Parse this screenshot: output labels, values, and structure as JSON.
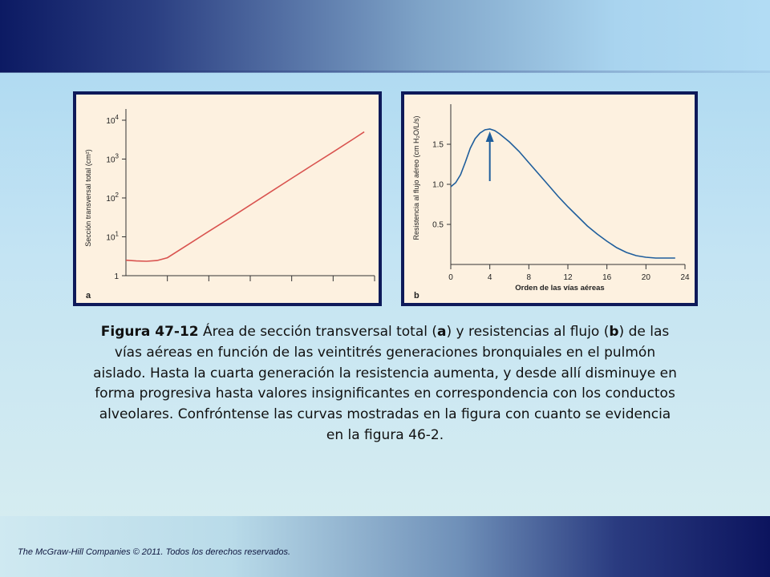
{
  "chart_data": [
    {
      "type": "line",
      "panel_label": "a",
      "ylabel": "Sección transversal total (cm²)",
      "y_scale": "log",
      "y_ticks": [
        {
          "value": 1,
          "base": "1",
          "exp": ""
        },
        {
          "value": 10,
          "base": "10",
          "exp": "1"
        },
        {
          "value": 100,
          "base": "10",
          "exp": "2"
        },
        {
          "value": 1000,
          "base": "10",
          "exp": "3"
        },
        {
          "value": 10000,
          "base": "10",
          "exp": "4"
        }
      ],
      "x_range": [
        0,
        24
      ],
      "x_ticks": [
        4,
        8,
        12,
        16,
        20,
        24
      ],
      "x_tick_labels": false,
      "line_color": "#d9534f",
      "series": [
        {
          "x": [
            0,
            1,
            2,
            3,
            4,
            6,
            8,
            10,
            12,
            14,
            16,
            18,
            20,
            22,
            23
          ],
          "y": [
            2.5,
            2.4,
            2.35,
            2.45,
            2.9,
            6.3,
            13.8,
            30,
            66,
            145,
            320,
            700,
            1520,
            3350,
            5000
          ]
        }
      ]
    },
    {
      "type": "line",
      "panel_label": "b",
      "ylabel": "Resistencia al flujo aéreo (cm H₂O/L/s)",
      "xlabel": "Orden de las vías aéreas",
      "y_range": [
        0,
        2.0
      ],
      "y_ticks": [
        0.5,
        1.0,
        1.5
      ],
      "y_tick_labels": [
        "0.5",
        "1.0",
        "1.5"
      ],
      "x_range": [
        0,
        24
      ],
      "x_ticks": [
        0,
        4,
        8,
        12,
        16,
        20,
        24
      ],
      "x_tick_labels": [
        "0",
        "4",
        "8",
        "12",
        "16",
        "20",
        "24"
      ],
      "line_color": "#1f5e9c",
      "annotation": "arrow at generation 4 pointing to peak",
      "series": [
        {
          "x": [
            0,
            0.5,
            1,
            1.5,
            2,
            2.5,
            3,
            3.5,
            4,
            4.5,
            5,
            6,
            7,
            8,
            9,
            10,
            11,
            12,
            13,
            14,
            15,
            16,
            17,
            18,
            19,
            20,
            21,
            22,
            23
          ],
          "y": [
            0.97,
            1.02,
            1.12,
            1.28,
            1.45,
            1.57,
            1.64,
            1.68,
            1.69,
            1.67,
            1.63,
            1.53,
            1.41,
            1.27,
            1.13,
            0.99,
            0.85,
            0.72,
            0.6,
            0.48,
            0.38,
            0.29,
            0.21,
            0.15,
            0.11,
            0.09,
            0.08,
            0.08,
            0.08
          ]
        }
      ]
    }
  ],
  "caption": {
    "fig": "Figura 47-12",
    "part1": " Área de sección transversal total (",
    "a": "a",
    "part2": ") y resistencias al flujo (",
    "b": "b",
    "part3": ") de las vías aéreas en función de las veintitrés generaciones bronquiales en el pulmón aislado. Hasta la cuarta generación la resistencia aumenta, y desde allí disminuye en forma progresiva hasta valores insignificantes en correspondencia con los conductos alveolares. Confróntense las curvas mostradas en la figura con cuanto se evidencia en la figura 46-2."
  },
  "footer": "The McGraw-Hill Companies © 2011. Todos los derechos reservados."
}
